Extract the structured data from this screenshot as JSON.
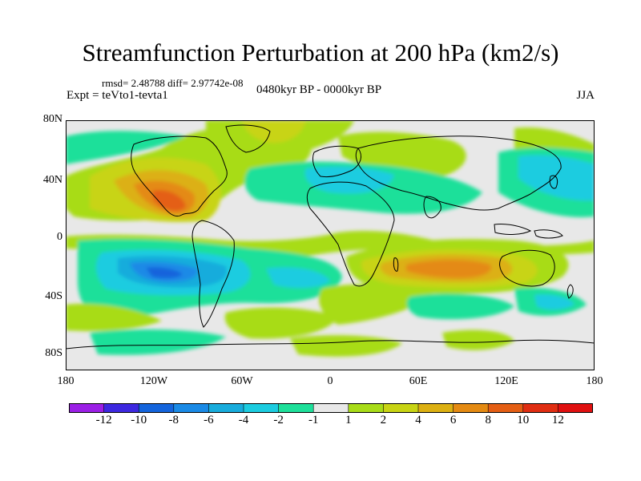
{
  "header": {
    "title": "Streamfunction Perturbation at 200 hPa (km2/s)",
    "stats": "rmsd= 2.48788 diff= 2.97742e-08",
    "experiment": "Expt = teVto1-tevta1",
    "period": "0480kyr BP - 0000kyr BP",
    "season": "JJA"
  },
  "axes": {
    "lat_labels": [
      "80N",
      "40N",
      "0",
      "40S",
      "80S"
    ],
    "lon_labels": [
      "180",
      "120W",
      "60W",
      "0",
      "60E",
      "120E",
      "180"
    ]
  },
  "colorbar": {
    "labels": [
      "-12",
      "-10",
      "-8",
      "-6",
      "-4",
      "-2",
      "-1",
      "1",
      "2",
      "4",
      "6",
      "8",
      "10",
      "12"
    ],
    "colors": [
      "#9b1fe6",
      "#3d28e0",
      "#1464dc",
      "#1a8ae6",
      "#18acdc",
      "#1ccce0",
      "#1ee09a",
      "#e8e8e8",
      "#a8dc18",
      "#c8d414",
      "#dcb012",
      "#e48a12",
      "#e45e14",
      "#e02e12",
      "#e01010"
    ]
  },
  "colors": {
    "ocean_neutral": "#e8e8e8",
    "coast": "#000000"
  }
}
